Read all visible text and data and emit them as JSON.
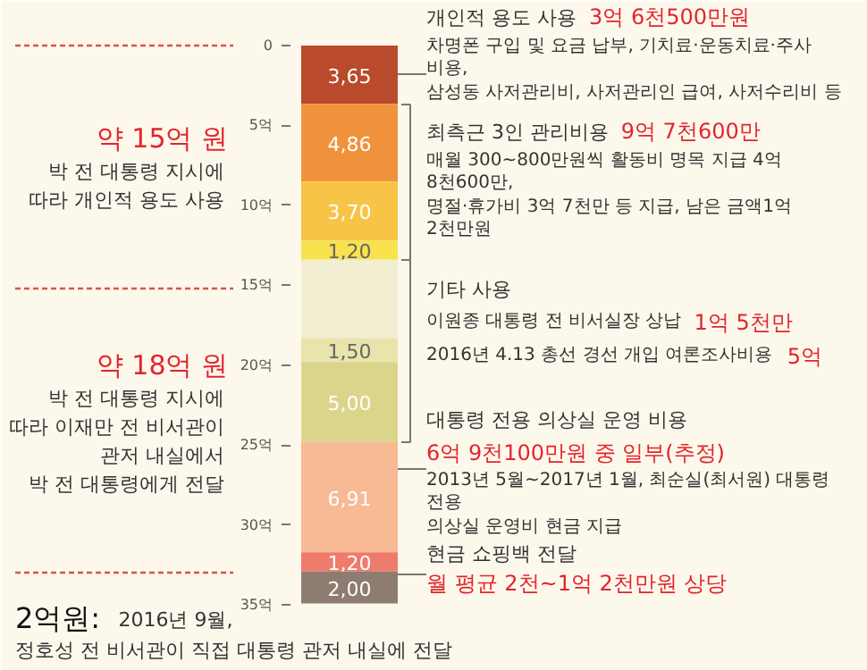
{
  "chart_data": {
    "type": "bar",
    "stacked": true,
    "categories": [
      null
    ],
    "ylim": [
      35,
      0
    ],
    "yticks": [
      0,
      {
        "value": 5,
        "label": "5억"
      },
      {
        "value": 10,
        "label": "10억"
      },
      {
        "value": 15,
        "label": "15억"
      },
      {
        "value": 20,
        "label": "20억"
      },
      {
        "value": 25,
        "label": "25억"
      },
      {
        "value": 30,
        "label": "30억"
      },
      {
        "value": 35,
        "label": "35억"
      }
    ],
    "grid": false,
    "series": [
      {
        "color": "#b94a2c",
        "values": [
          3.65
        ],
        "value_labels": [
          "3,65"
        ]
      },
      {
        "color": "#f0923c",
        "values": [
          4.86
        ],
        "value_labels": [
          "4,86"
        ]
      },
      {
        "color": "#f8c447",
        "values": [
          3.7
        ],
        "value_labels": [
          "3,70"
        ]
      },
      {
        "color": "#f8e24e",
        "values": [
          1.2
        ],
        "value_labels": [
          "1,20"
        ]
      },
      {
        "color": "#f1eed2",
        "values": [
          4.9
        ],
        "value_labels": [
          null
        ]
      },
      {
        "color": "#e9e4ab",
        "values": [
          1.5
        ],
        "value_labels": [
          "1,50"
        ]
      },
      {
        "color": "#dbd48b",
        "values": [
          5.0
        ],
        "value_labels": [
          "5,00"
        ]
      },
      {
        "color": "#f8b995",
        "values": [
          6.91
        ],
        "value_labels": [
          "6,91"
        ]
      },
      {
        "color": "#ef7b6c",
        "values": [
          1.2
        ],
        "value_labels": [
          "1,20"
        ]
      },
      {
        "color": "#8d7c70",
        "values": [
          2.0
        ],
        "value_labels": [
          "2,00"
        ]
      }
    ],
    "annotations": [
      "개인적 용도 사용",
      "3억 6천500만원",
      "차명폰 구입 및 요금 납부, 기치료·운동치료·주사 비용,",
      "삼성동 사저관리비, 사저관리인 급여, 사저수리비 등",
      "최측근 3인 관리비용",
      "9억 7천600만",
      "매월 300~800만원씩 활동비 명목 지급 4억 8천600만,",
      "명절·휴가비 3억 7천만 등 지급, 남은 금액1억 2천만원",
      "기타 사용",
      "이원종 대통령 전 비서실장 상납",
      "1억 5천만",
      "2016년 4.13 총선 경선 개입 여론조사비용",
      "5억",
      "대통령 전용 의상실 운영 비용",
      "6억 9천100만원 중 일부(추정)",
      "2013년 5월~2017년 1월, 최순실(최서원) 대통령 전용",
      "의상실 운영비 현금 지급",
      "현금 쇼핑백 전달",
      "월 평균 2천~1억 2천만원 상당",
      "약 15억 원",
      "박 전 대통령 지시에",
      "따라 개인적 용도 사용",
      "약 18억 원",
      "박 전 대통령 지시에",
      "따라 이재만 전 비서관이",
      "관저 내실에서",
      "박 전 대통령에게 전달",
      "2억원:",
      "2016년 9월,",
      "정호성 전 비서관이 직접 대통령 관저 내실에 전달"
    ]
  }
}
